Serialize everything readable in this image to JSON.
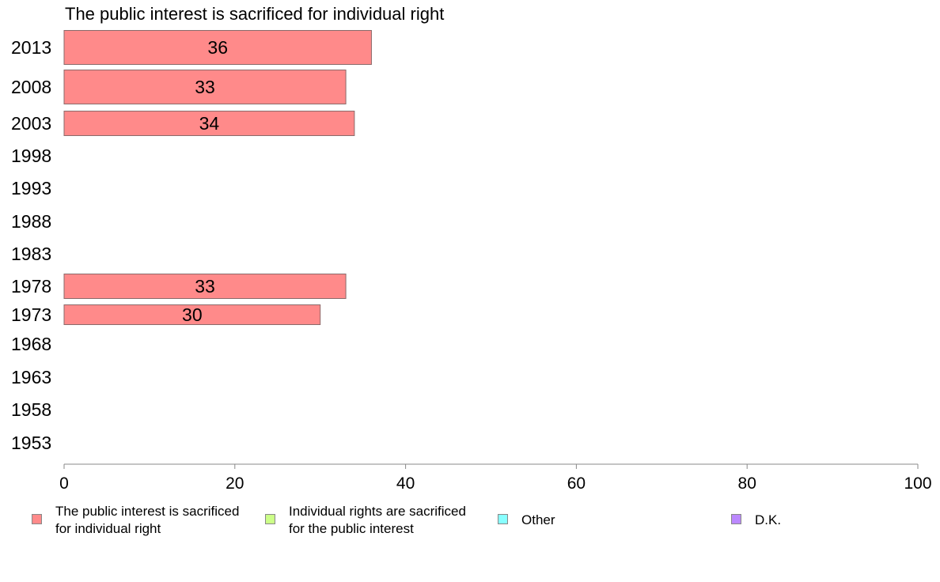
{
  "chart_data": {
    "type": "bar",
    "orientation": "horizontal",
    "title": "The public interest is sacrificed for individual right",
    "categories": [
      "2013",
      "2008",
      "2003",
      "1998",
      "1993",
      "1988",
      "1983",
      "1978",
      "1973",
      "1968",
      "1963",
      "1958",
      "1953"
    ],
    "series": [
      {
        "name": "The public interest is sacrificed for individual right",
        "color": "#ff8a8a",
        "values": [
          36,
          33,
          34,
          null,
          null,
          null,
          null,
          33,
          30,
          null,
          null,
          null,
          null
        ],
        "labels": [
          "36",
          "33",
          "34",
          "",
          "",
          "",
          "",
          "33",
          "30",
          "",
          "",
          "",
          ""
        ]
      }
    ],
    "xlim": [
      0,
      100
    ],
    "xticks": [
      "0",
      "20",
      "40",
      "60",
      "80",
      "100"
    ],
    "grid": false
  },
  "legend": {
    "items": [
      {
        "label": "The public interest is sacrificed\nfor individual right",
        "color": "#ff8a8a"
      },
      {
        "label": "Individual rights are sacrificed\nfor the public interest",
        "color": "#ccff88"
      },
      {
        "label": "Other",
        "color": "#88ffff"
      },
      {
        "label": "D.K.",
        "color": "#bb88ff"
      }
    ]
  }
}
